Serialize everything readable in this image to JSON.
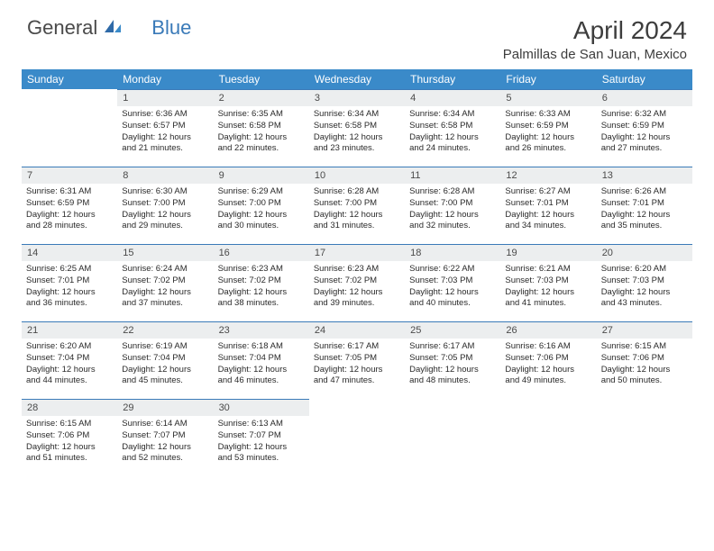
{
  "logo": {
    "part1": "General",
    "part2": "Blue"
  },
  "title": "April 2024",
  "subtitle": "Palmillas de San Juan, Mexico",
  "headerColors": {
    "bg": "#3a8ac9",
    "text": "#ffffff",
    "dayBarBorder": "#3a7ab8",
    "dayBarBg": "#eceeef"
  },
  "weekdays": [
    "Sunday",
    "Monday",
    "Tuesday",
    "Wednesday",
    "Thursday",
    "Friday",
    "Saturday"
  ],
  "fonts": {
    "title": 28,
    "subtitle": 15,
    "weekday": 12,
    "daynum": 11,
    "body": 9.5
  },
  "weeks": [
    [
      {
        "n": "",
        "lines": []
      },
      {
        "n": "1",
        "lines": [
          "Sunrise: 6:36 AM",
          "Sunset: 6:57 PM",
          "Daylight: 12 hours",
          "and 21 minutes."
        ]
      },
      {
        "n": "2",
        "lines": [
          "Sunrise: 6:35 AM",
          "Sunset: 6:58 PM",
          "Daylight: 12 hours",
          "and 22 minutes."
        ]
      },
      {
        "n": "3",
        "lines": [
          "Sunrise: 6:34 AM",
          "Sunset: 6:58 PM",
          "Daylight: 12 hours",
          "and 23 minutes."
        ]
      },
      {
        "n": "4",
        "lines": [
          "Sunrise: 6:34 AM",
          "Sunset: 6:58 PM",
          "Daylight: 12 hours",
          "and 24 minutes."
        ]
      },
      {
        "n": "5",
        "lines": [
          "Sunrise: 6:33 AM",
          "Sunset: 6:59 PM",
          "Daylight: 12 hours",
          "and 26 minutes."
        ]
      },
      {
        "n": "6",
        "lines": [
          "Sunrise: 6:32 AM",
          "Sunset: 6:59 PM",
          "Daylight: 12 hours",
          "and 27 minutes."
        ]
      }
    ],
    [
      {
        "n": "7",
        "lines": [
          "Sunrise: 6:31 AM",
          "Sunset: 6:59 PM",
          "Daylight: 12 hours",
          "and 28 minutes."
        ]
      },
      {
        "n": "8",
        "lines": [
          "Sunrise: 6:30 AM",
          "Sunset: 7:00 PM",
          "Daylight: 12 hours",
          "and 29 minutes."
        ]
      },
      {
        "n": "9",
        "lines": [
          "Sunrise: 6:29 AM",
          "Sunset: 7:00 PM",
          "Daylight: 12 hours",
          "and 30 minutes."
        ]
      },
      {
        "n": "10",
        "lines": [
          "Sunrise: 6:28 AM",
          "Sunset: 7:00 PM",
          "Daylight: 12 hours",
          "and 31 minutes."
        ]
      },
      {
        "n": "11",
        "lines": [
          "Sunrise: 6:28 AM",
          "Sunset: 7:00 PM",
          "Daylight: 12 hours",
          "and 32 minutes."
        ]
      },
      {
        "n": "12",
        "lines": [
          "Sunrise: 6:27 AM",
          "Sunset: 7:01 PM",
          "Daylight: 12 hours",
          "and 34 minutes."
        ]
      },
      {
        "n": "13",
        "lines": [
          "Sunrise: 6:26 AM",
          "Sunset: 7:01 PM",
          "Daylight: 12 hours",
          "and 35 minutes."
        ]
      }
    ],
    [
      {
        "n": "14",
        "lines": [
          "Sunrise: 6:25 AM",
          "Sunset: 7:01 PM",
          "Daylight: 12 hours",
          "and 36 minutes."
        ]
      },
      {
        "n": "15",
        "lines": [
          "Sunrise: 6:24 AM",
          "Sunset: 7:02 PM",
          "Daylight: 12 hours",
          "and 37 minutes."
        ]
      },
      {
        "n": "16",
        "lines": [
          "Sunrise: 6:23 AM",
          "Sunset: 7:02 PM",
          "Daylight: 12 hours",
          "and 38 minutes."
        ]
      },
      {
        "n": "17",
        "lines": [
          "Sunrise: 6:23 AM",
          "Sunset: 7:02 PM",
          "Daylight: 12 hours",
          "and 39 minutes."
        ]
      },
      {
        "n": "18",
        "lines": [
          "Sunrise: 6:22 AM",
          "Sunset: 7:03 PM",
          "Daylight: 12 hours",
          "and 40 minutes."
        ]
      },
      {
        "n": "19",
        "lines": [
          "Sunrise: 6:21 AM",
          "Sunset: 7:03 PM",
          "Daylight: 12 hours",
          "and 41 minutes."
        ]
      },
      {
        "n": "20",
        "lines": [
          "Sunrise: 6:20 AM",
          "Sunset: 7:03 PM",
          "Daylight: 12 hours",
          "and 43 minutes."
        ]
      }
    ],
    [
      {
        "n": "21",
        "lines": [
          "Sunrise: 6:20 AM",
          "Sunset: 7:04 PM",
          "Daylight: 12 hours",
          "and 44 minutes."
        ]
      },
      {
        "n": "22",
        "lines": [
          "Sunrise: 6:19 AM",
          "Sunset: 7:04 PM",
          "Daylight: 12 hours",
          "and 45 minutes."
        ]
      },
      {
        "n": "23",
        "lines": [
          "Sunrise: 6:18 AM",
          "Sunset: 7:04 PM",
          "Daylight: 12 hours",
          "and 46 minutes."
        ]
      },
      {
        "n": "24",
        "lines": [
          "Sunrise: 6:17 AM",
          "Sunset: 7:05 PM",
          "Daylight: 12 hours",
          "and 47 minutes."
        ]
      },
      {
        "n": "25",
        "lines": [
          "Sunrise: 6:17 AM",
          "Sunset: 7:05 PM",
          "Daylight: 12 hours",
          "and 48 minutes."
        ]
      },
      {
        "n": "26",
        "lines": [
          "Sunrise: 6:16 AM",
          "Sunset: 7:06 PM",
          "Daylight: 12 hours",
          "and 49 minutes."
        ]
      },
      {
        "n": "27",
        "lines": [
          "Sunrise: 6:15 AM",
          "Sunset: 7:06 PM",
          "Daylight: 12 hours",
          "and 50 minutes."
        ]
      }
    ],
    [
      {
        "n": "28",
        "lines": [
          "Sunrise: 6:15 AM",
          "Sunset: 7:06 PM",
          "Daylight: 12 hours",
          "and 51 minutes."
        ]
      },
      {
        "n": "29",
        "lines": [
          "Sunrise: 6:14 AM",
          "Sunset: 7:07 PM",
          "Daylight: 12 hours",
          "and 52 minutes."
        ]
      },
      {
        "n": "30",
        "lines": [
          "Sunrise: 6:13 AM",
          "Sunset: 7:07 PM",
          "Daylight: 12 hours",
          "and 53 minutes."
        ]
      },
      {
        "n": "",
        "lines": []
      },
      {
        "n": "",
        "lines": []
      },
      {
        "n": "",
        "lines": []
      },
      {
        "n": "",
        "lines": []
      }
    ]
  ]
}
